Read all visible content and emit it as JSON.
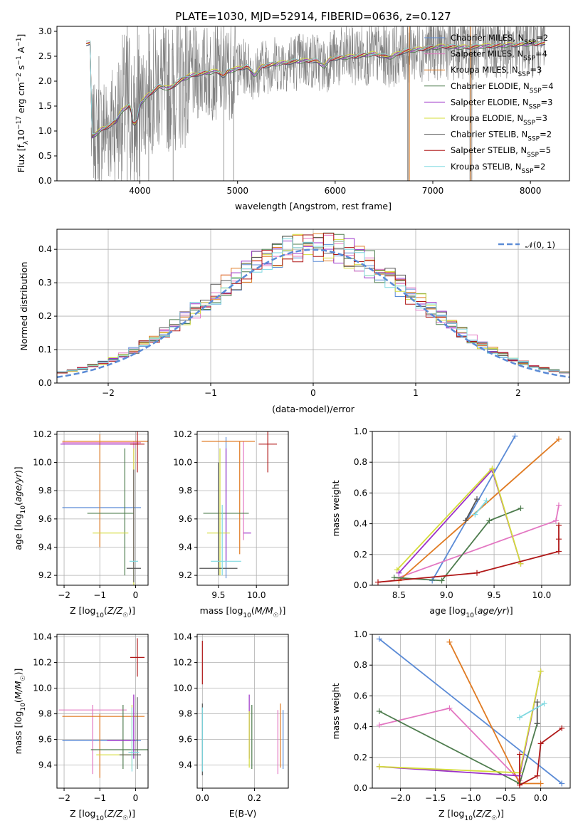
{
  "colors": {
    "chabrier_miles": "#5b8bd6",
    "salpeter_miles": "#e377c2",
    "kroupa_miles": "#e07b23",
    "chabrier_elodie": "#4e7c4e",
    "salpeter_elodie": "#9b30c8",
    "kroupa_elodie": "#d4dc3a",
    "chabrier_stelib": "#555555",
    "salpeter_stelib": "#b01818",
    "kroupa_stelib": "#7ed8e0",
    "spectrum": "#808080",
    "gauss": "#5b8bd6"
  },
  "chart_data": [
    {
      "type": "line",
      "title": "PLATE=1030, MJD=52914, FIBERID=0636, z=0.127",
      "xlabel": "wavelength [Angstrom, rest frame]",
      "ylabel": "Flux [f_λ10^-17 erg cm^-2 s^-1 A^-1]",
      "xlim": [
        3150,
        8400
      ],
      "ylim": [
        0,
        3.1
      ],
      "xticks": [
        "4000",
        "5000",
        "6000",
        "7000",
        "8000"
      ],
      "yticks": [
        "0.0",
        "0.5",
        "1.0",
        "1.5",
        "2.0",
        "2.5",
        "3.0"
      ],
      "legend": [
        {
          "label": "Chabrier MILES, N_SSP=2",
          "main": "Chabrier MILES, N",
          "sub": "SSP",
          "tail": "=2"
        },
        {
          "label": "Salpeter MILES, N_SSP=4",
          "main": "Salpeter MILES, N",
          "sub": "SSP",
          "tail": "=4"
        },
        {
          "label": "Kroupa MILES, N_SSP=3",
          "main": "Kroupa MILES, N",
          "sub": "SSP",
          "tail": "=3"
        },
        {
          "label": "Chabrier ELODIE, N_SSP=4",
          "main": "Chabrier ELODIE, N",
          "sub": "SSP",
          "tail": "=4"
        },
        {
          "label": "Salpeter ELODIE, N_SSP=3",
          "main": "Salpeter ELODIE, N",
          "sub": "SSP",
          "tail": "=3"
        },
        {
          "label": "Kroupa ELODIE, N_SSP=3",
          "main": "Kroupa ELODIE, N",
          "sub": "SSP",
          "tail": "=3"
        },
        {
          "label": "Chabrier STELIB, N_SSP=2",
          "main": "Chabrier STELIB, N",
          "sub": "SSP",
          "tail": "=2"
        },
        {
          "label": "Salpeter STELIB, N_SSP=5",
          "main": "Salpeter STELIB, N",
          "sub": "SSP",
          "tail": "=5"
        },
        {
          "label": "Kroupa STELIB, N_SSP=2",
          "main": "Kroupa STELIB, N",
          "sub": "SSP",
          "tail": "=2"
        }
      ],
      "legend_placement": "upper right",
      "model_continuum": [
        [
          3500,
          0.88
        ],
        [
          3560,
          0.96
        ],
        [
          3620,
          1.05
        ],
        [
          3700,
          1.12
        ],
        [
          3760,
          1.2
        ],
        [
          3800,
          1.38
        ],
        [
          3850,
          1.45
        ],
        [
          3900,
          1.55
        ],
        [
          3935,
          1.1
        ],
        [
          3970,
          1.2
        ],
        [
          4000,
          1.55
        ],
        [
          4100,
          1.75
        ],
        [
          4200,
          1.9
        ],
        [
          4300,
          1.85
        ],
        [
          4400,
          2.0
        ],
        [
          4500,
          2.1
        ],
        [
          4600,
          2.15
        ],
        [
          4700,
          2.18
        ],
        [
          4800,
          2.2
        ],
        [
          4860,
          2.1
        ],
        [
          4900,
          2.2
        ],
        [
          5000,
          2.25
        ],
        [
          5100,
          2.3
        ],
        [
          5175,
          2.12
        ],
        [
          5250,
          2.3
        ],
        [
          5400,
          2.35
        ],
        [
          5600,
          2.4
        ],
        [
          5800,
          2.42
        ],
        [
          5890,
          2.3
        ],
        [
          5950,
          2.45
        ],
        [
          6200,
          2.5
        ],
        [
          6400,
          2.55
        ],
        [
          6560,
          2.48
        ],
        [
          6700,
          2.6
        ],
        [
          6900,
          2.65
        ],
        [
          7100,
          2.7
        ],
        [
          7300,
          2.68
        ],
        [
          7500,
          2.7
        ],
        [
          7700,
          2.72
        ],
        [
          8000,
          2.75
        ],
        [
          8150,
          2.76
        ]
      ],
      "spectrum_range": [
        3500,
        8150
      ]
    },
    {
      "type": "line",
      "xlabel": "(data-model)/error",
      "ylabel": "Normed distribution",
      "xlim": [
        -2.5,
        2.5
      ],
      "ylim": [
        0,
        0.46
      ],
      "xticks": [
        "−2",
        "−1",
        "0",
        "1",
        "2"
      ],
      "yticks": [
        "0.0",
        "0.1",
        "0.2",
        "0.3",
        "0.4"
      ],
      "grid": true,
      "legend": [
        {
          "label": "N(0, 1)",
          "text": "𝒩(0, 1)"
        }
      ],
      "legend_placement": "upper right",
      "gaussian": {
        "mean": 0,
        "sigma": 1
      }
    },
    {
      "type": "scatter",
      "xlabel": "Z [log10(Z/Z☉)]",
      "ylabel": "age [log10(age/yr)]",
      "xlim": [
        -2.2,
        0.35
      ],
      "ylim": [
        9.13,
        10.22
      ],
      "xticks": [
        "−2",
        "−1",
        "0"
      ],
      "yticks": [
        "9.2",
        "9.4",
        "9.6",
        "9.8",
        "10.0",
        "10.2"
      ],
      "grid": true,
      "points": [
        {
          "series": "chabrier_miles",
          "x": -0.95,
          "xerr": 1.1,
          "y": 9.68,
          "yerr": 0.0
        },
        {
          "series": "chabrier_miles",
          "x": 0.2,
          "xerr": 0.02,
          "y": 10.15,
          "yerr": 0.02
        },
        {
          "series": "salpeter_miles",
          "x": -0.95,
          "xerr": 1.1,
          "y": 10.14,
          "yerr": 0.02
        },
        {
          "series": "salpeter_miles",
          "x": -0.05,
          "xerr": 0.02,
          "y": 9.7,
          "yerr": 0.45
        },
        {
          "series": "kroupa_miles",
          "x": -0.6,
          "xerr": 1.45,
          "y": 10.15,
          "yerr": 0.01
        },
        {
          "series": "kroupa_miles",
          "x": -1.0,
          "xerr": 0.02,
          "y": 9.8,
          "yerr": 0.4
        },
        {
          "series": "chabrier_elodie",
          "x": -0.7,
          "xerr": 0.65,
          "y": 9.64,
          "yerr": 0.01
        },
        {
          "series": "chabrier_elodie",
          "x": -0.3,
          "xerr": 0.02,
          "y": 9.65,
          "yerr": 0.45
        },
        {
          "series": "salpeter_elodie",
          "x": -1.0,
          "xerr": 1.1,
          "y": 10.13,
          "yerr": 0.01
        },
        {
          "series": "kroupa_elodie",
          "x": -0.7,
          "xerr": 0.5,
          "y": 9.5,
          "yerr": 0.01
        },
        {
          "series": "kroupa_elodie",
          "x": -0.05,
          "xerr": 0.02,
          "y": 9.6,
          "yerr": 0.5
        },
        {
          "series": "chabrier_stelib",
          "x": -0.05,
          "xerr": 0.2,
          "y": 9.25,
          "yerr": 0.01
        },
        {
          "series": "chabrier_stelib",
          "x": -0.05,
          "xerr": 0.02,
          "y": 9.55,
          "yerr": 0.4
        },
        {
          "series": "salpeter_stelib",
          "x": 0.05,
          "xerr": 0.2,
          "y": 10.13,
          "yerr": 0.2
        },
        {
          "series": "kroupa_stelib",
          "x": -0.05,
          "xerr": 0.12,
          "y": 9.3,
          "yerr": 0.01
        }
      ]
    },
    {
      "type": "scatter",
      "xlabel": "mass [log10(M/M☉)]",
      "ylabel": "",
      "xlim": [
        9.22,
        10.42
      ],
      "ylim": [
        9.13,
        10.22
      ],
      "xticks": [
        "9.5",
        "10.0"
      ],
      "yticks": [
        "9.2",
        "9.4",
        "9.6",
        "9.8",
        "10.0",
        "10.2"
      ],
      "grid": true,
      "points": [
        {
          "series": "chabrier_miles",
          "x": 9.6,
          "xerr": 0.02,
          "y": 9.68,
          "yerr": 0.5
        },
        {
          "series": "salpeter_miles",
          "x": 9.83,
          "xerr": 0.02,
          "y": 9.8,
          "yerr": 0.35
        },
        {
          "series": "kroupa_miles",
          "x": 9.63,
          "xerr": 0.35,
          "y": 10.15,
          "yerr": 0.01
        },
        {
          "series": "kroupa_miles",
          "x": 9.78,
          "xerr": 0.02,
          "y": 9.75,
          "yerr": 0.4
        },
        {
          "series": "chabrier_elodie",
          "x": 9.6,
          "xerr": 0.3,
          "y": 9.64,
          "yerr": 0.01
        },
        {
          "series": "chabrier_elodie",
          "x": 9.5,
          "xerr": 0.02,
          "y": 9.6,
          "yerr": 0.4
        },
        {
          "series": "salpeter_elodie",
          "x": 9.6,
          "xerr": 0.02,
          "y": 9.7,
          "yerr": 0.4
        },
        {
          "series": "salpeter_elodie",
          "x": 9.88,
          "xerr": 0.05,
          "y": 9.5,
          "yerr": 0.0
        },
        {
          "series": "kroupa_elodie",
          "x": 9.52,
          "xerr": 0.02,
          "y": 9.65,
          "yerr": 0.45
        },
        {
          "series": "kroupa_elodie",
          "x": 9.5,
          "xerr": 0.15,
          "y": 9.5,
          "yerr": 0.01
        },
        {
          "series": "chabrier_stelib",
          "x": 9.5,
          "xerr": 0.25,
          "y": 9.25,
          "yerr": 0.01
        },
        {
          "series": "chabrier_stelib",
          "x": 9.5,
          "xerr": 0.02,
          "y": 9.6,
          "yerr": 0.4
        },
        {
          "series": "salpeter_stelib",
          "x": 10.15,
          "xerr": 0.12,
          "y": 10.13,
          "yerr": 0.2
        },
        {
          "series": "kroupa_stelib",
          "x": 9.55,
          "xerr": 0.02,
          "y": 9.45,
          "yerr": 0.25
        },
        {
          "series": "kroupa_stelib",
          "x": 9.6,
          "xerr": 0.2,
          "y": 9.3,
          "yerr": 0.01
        }
      ]
    },
    {
      "type": "line",
      "xlabel": "age [log10(age/yr)]",
      "ylabel": "mass weight",
      "xlim": [
        8.22,
        10.3
      ],
      "ylim": [
        0,
        1
      ],
      "xticks": [
        "8.5",
        "9.0",
        "9.5",
        "10.0"
      ],
      "yticks": [
        "0.0",
        "0.2",
        "0.4",
        "0.6",
        "0.8",
        "1.0"
      ],
      "grid": true,
      "series": [
        {
          "name": "chabrier_miles",
          "x": [
            8.85,
            9.72
          ],
          "y": [
            0.03,
            0.97
          ]
        },
        {
          "name": "salpeter_miles",
          "x": [
            8.5,
            10.15,
            10.18
          ],
          "y": [
            0.05,
            0.42,
            0.52
          ]
        },
        {
          "name": "kroupa_miles",
          "x": [
            8.5,
            10.18
          ],
          "y": [
            0.03,
            0.95
          ]
        },
        {
          "name": "chabrier_elodie",
          "x": [
            8.45,
            8.95,
            9.45,
            9.78
          ],
          "y": [
            0.05,
            0.03,
            0.42,
            0.5
          ]
        },
        {
          "name": "salpeter_elodie",
          "x": [
            8.5,
            9.48,
            9.78
          ],
          "y": [
            0.08,
            0.75,
            0.14
          ]
        },
        {
          "name": "kroupa_elodie",
          "x": [
            8.48,
            9.48,
            9.78
          ],
          "y": [
            0.1,
            0.76,
            0.14
          ]
        },
        {
          "name": "chabrier_stelib",
          "x": [
            9.2,
            9.32
          ],
          "y": [
            0.42,
            0.56
          ]
        },
        {
          "name": "salpeter_stelib",
          "x": [
            8.28,
            9.32,
            10.18,
            10.18,
            10.18
          ],
          "y": [
            0.02,
            0.08,
            0.22,
            0.3,
            0.39
          ]
        },
        {
          "name": "kroupa_stelib",
          "x": [
            9.3,
            9.42
          ],
          "y": [
            0.46,
            0.55
          ]
        }
      ]
    },
    {
      "type": "scatter",
      "xlabel": "Z [log10(Z/Z☉)]",
      "ylabel": "mass [log10(M/M☉)]",
      "xlim": [
        -2.2,
        0.35
      ],
      "ylim": [
        9.22,
        10.42
      ],
      "xticks": [
        "−2",
        "−1",
        "0"
      ],
      "yticks": [
        "9.4",
        "9.6",
        "9.8",
        "10.0",
        "10.2",
        "10.4"
      ],
      "grid": true,
      "points": [
        {
          "series": "chabrier_miles",
          "x": -0.95,
          "xerr": 1.1,
          "y": 9.59,
          "yerr": 0.0
        },
        {
          "series": "salpeter_miles",
          "x": -1.2,
          "xerr": 0.95,
          "y": 9.83,
          "yerr": 0.0
        },
        {
          "series": "salpeter_miles",
          "x": -1.2,
          "xerr": 0.02,
          "y": 9.6,
          "yerr": 0.27
        },
        {
          "series": "salpeter_miles",
          "x": -0.05,
          "xerr": 0.02,
          "y": 9.7,
          "yerr": 0.25
        },
        {
          "series": "kroupa_miles",
          "x": -0.9,
          "xerr": 1.15,
          "y": 9.78,
          "yerr": 0.0
        },
        {
          "series": "kroupa_miles",
          "x": -1.0,
          "xerr": 0.02,
          "y": 9.55,
          "yerr": 0.25
        },
        {
          "series": "chabrier_elodie",
          "x": -0.45,
          "xerr": 0.8,
          "y": 9.52,
          "yerr": 0.0
        },
        {
          "series": "chabrier_elodie",
          "x": -0.35,
          "xerr": 0.02,
          "y": 9.62,
          "yerr": 0.25
        },
        {
          "series": "salpeter_elodie",
          "x": -0.4,
          "xerr": 0.4,
          "y": 9.59,
          "yerr": 0.0
        },
        {
          "series": "salpeter_elodie",
          "x": -0.05,
          "xerr": 0.02,
          "y": 9.7,
          "yerr": 0.25
        },
        {
          "series": "kroupa_elodie",
          "x": -0.55,
          "xerr": 0.55,
          "y": 9.48,
          "yerr": 0.0
        },
        {
          "series": "kroupa_elodie",
          "x": -0.1,
          "xerr": 0.02,
          "y": 9.62,
          "yerr": 0.25
        },
        {
          "series": "chabrier_stelib",
          "x": -0.15,
          "xerr": 0.3,
          "y": 9.48,
          "yerr": 0.0
        },
        {
          "series": "chabrier_stelib",
          "x": 0.05,
          "xerr": 0.02,
          "y": 9.65,
          "yerr": 0.28
        },
        {
          "series": "salpeter_stelib",
          "x": 0.05,
          "xerr": 0.2,
          "y": 10.24,
          "yerr": 0.15
        },
        {
          "series": "kroupa_stelib",
          "x": -0.05,
          "xerr": 0.15,
          "y": 9.5,
          "yerr": 0.0
        },
        {
          "series": "kroupa_stelib",
          "x": -0.1,
          "xerr": 0.02,
          "y": 9.6,
          "yerr": 0.25
        }
      ]
    },
    {
      "type": "scatter",
      "xlabel": "E(B-V)",
      "ylabel": "",
      "xlim": [
        -0.02,
        0.33
      ],
      "ylim": [
        9.22,
        10.42
      ],
      "xticks": [
        "0.0",
        "0.2"
      ],
      "yticks": [
        "9.4",
        "9.6",
        "9.8",
        "10.0",
        "10.2",
        "10.4"
      ],
      "grid": true,
      "points": [
        {
          "series": "chabrier_miles",
          "x": 0.31,
          "y": 9.6,
          "yerr": 0.23
        },
        {
          "series": "salpeter_miles",
          "x": 0.29,
          "y": 9.58,
          "yerr": 0.25
        },
        {
          "series": "kroupa_miles",
          "x": 0.3,
          "y": 9.63,
          "yerr": 0.25
        },
        {
          "series": "chabrier_elodie",
          "x": 0.19,
          "y": 9.62,
          "yerr": 0.25
        },
        {
          "series": "salpeter_elodie",
          "x": 0.18,
          "y": 9.7,
          "yerr": 0.25
        },
        {
          "series": "kroupa_elodie",
          "x": 0.18,
          "y": 9.6,
          "yerr": 0.22
        },
        {
          "series": "chabrier_stelib",
          "x": 0.0,
          "y": 9.6,
          "yerr": 0.28
        },
        {
          "series": "salpeter_stelib",
          "x": 0.0,
          "y": 10.2,
          "yerr": 0.17
        },
        {
          "series": "kroupa_stelib",
          "x": 0.0,
          "y": 9.6,
          "yerr": 0.25
        }
      ]
    },
    {
      "type": "line",
      "xlabel": "Z [log10(Z/Z☉)]",
      "ylabel": "mass weight",
      "xlim": [
        -2.4,
        0.42
      ],
      "ylim": [
        0,
        1
      ],
      "xticks": [
        "−2.0",
        "−1.5",
        "−1.0",
        "−0.5",
        "0.0"
      ],
      "yticks": [
        "0.0",
        "0.2",
        "0.4",
        "0.6",
        "0.8",
        "1.0"
      ],
      "grid": true,
      "series": [
        {
          "name": "chabrier_miles",
          "x": [
            -2.3,
            0.3
          ],
          "y": [
            0.97,
            0.03
          ]
        },
        {
          "name": "salpeter_miles",
          "x": [
            -2.3,
            -1.3,
            -0.3
          ],
          "y": [
            0.41,
            0.52,
            0.05
          ]
        },
        {
          "name": "kroupa_miles",
          "x": [
            -1.3,
            -0.3,
            0.0
          ],
          "y": [
            0.95,
            0.03,
            0.03
          ]
        },
        {
          "name": "chabrier_elodie",
          "x": [
            -2.3,
            -0.3,
            -0.05
          ],
          "y": [
            0.5,
            0.03,
            0.42
          ]
        },
        {
          "name": "salpeter_elodie",
          "x": [
            -2.3,
            -0.3,
            0.0
          ],
          "y": [
            0.14,
            0.08,
            0.76
          ]
        },
        {
          "name": "kroupa_elodie",
          "x": [
            -2.3,
            -0.3,
            0.0
          ],
          "y": [
            0.14,
            0.1,
            0.76
          ]
        },
        {
          "name": "chabrier_stelib",
          "x": [
            -0.05,
            -0.05
          ],
          "y": [
            0.42,
            0.56
          ]
        },
        {
          "name": "salpeter_stelib",
          "x": [
            -0.3,
            -0.3,
            -0.05,
            0.0,
            0.3
          ],
          "y": [
            0.22,
            0.02,
            0.08,
            0.29,
            0.39
          ]
        },
        {
          "name": "kroupa_stelib",
          "x": [
            -0.3,
            0.05
          ],
          "y": [
            0.46,
            0.55
          ]
        }
      ]
    }
  ]
}
